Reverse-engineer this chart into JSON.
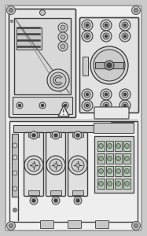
{
  "bg": "#d8d8d8",
  "panel_face": "#ebebeb",
  "inner_face": "#f5f5f5",
  "dc": "#404040",
  "mg": "#888888",
  "lg": "#cccccc",
  "meter_face": "#e8e8e8",
  "meter_glass": "#dcdcdc",
  "sw_face": "#e2e2e2",
  "bottom_face": "#eeeeee",
  "fuse_face": "#e0e0e0",
  "term_face": "#c8d0c8"
}
